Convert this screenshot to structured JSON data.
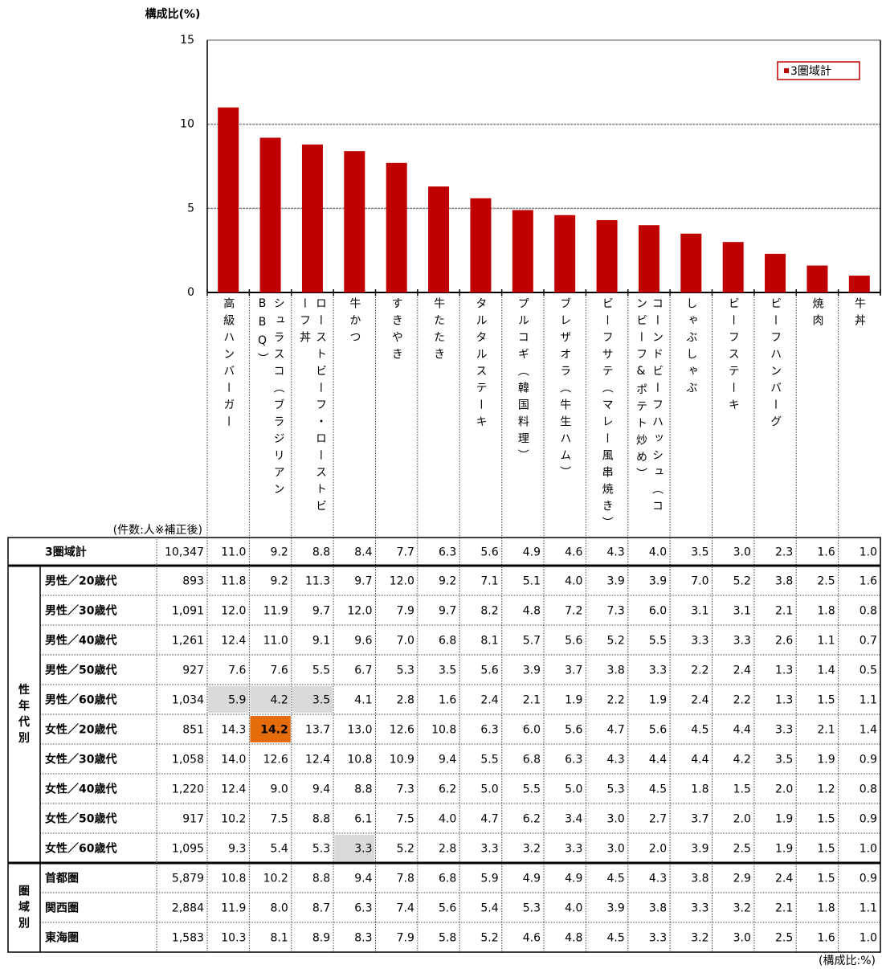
{
  "chart_data": {
    "type": "bar",
    "y_label": "構成比(%)",
    "ylim": [
      0,
      15
    ],
    "yticks": [
      0,
      5,
      10,
      15
    ],
    "grid": true,
    "legend": "upper right",
    "categories": [
      "高級ハンバーガー",
      "シュラスコ（ブラジリアンBBQ）",
      "ローストビーフ・ローストビーフ丼",
      "牛かつ",
      "すきやき",
      "牛たたき",
      "タルタルステーキ",
      "プルコギ（韓国料理）",
      "ブレザオラ（牛生ハム）",
      "ビーフサテ（マレー風串焼き）",
      "コーンドビーフハッシュ（コンビーフ&ポテト炒め）",
      "しゃぶしゃぶ",
      "ビーフステーキ",
      "ビーフハンバーグ",
      "焼肉",
      "牛丼"
    ],
    "series": [
      {
        "name": "3圏域計",
        "color": "#c00000",
        "values": [
          11.0,
          9.2,
          8.8,
          8.4,
          7.7,
          6.3,
          5.6,
          4.9,
          4.6,
          4.3,
          4.0,
          3.5,
          3.0,
          2.3,
          1.6,
          1.0
        ]
      }
    ]
  },
  "table": {
    "count_header": "(件数:人※補正後)",
    "note": "(構成比:%)",
    "total_row": {
      "label": "3圏域計",
      "count": "10,347",
      "values": [
        "11.0",
        "9.2",
        "8.8",
        "8.4",
        "7.7",
        "6.3",
        "5.6",
        "4.9",
        "4.6",
        "4.3",
        "4.0",
        "3.5",
        "3.0",
        "2.3",
        "1.6",
        "1.0"
      ]
    },
    "groups": [
      {
        "label": "性年代別",
        "rows": [
          {
            "label": "男性／20歳代",
            "count": "893",
            "values": [
              "11.8",
              "9.2",
              "11.3",
              "9.7",
              "12.0",
              "9.2",
              "7.1",
              "5.1",
              "4.0",
              "3.9",
              "3.9",
              "7.0",
              "5.2",
              "3.8",
              "2.5",
              "1.6"
            ]
          },
          {
            "label": "男性／30歳代",
            "count": "1,091",
            "values": [
              "12.0",
              "11.9",
              "9.7",
              "12.0",
              "7.9",
              "9.7",
              "8.2",
              "4.8",
              "7.2",
              "7.3",
              "6.0",
              "3.1",
              "3.1",
              "2.1",
              "1.8",
              "0.8"
            ]
          },
          {
            "label": "男性／40歳代",
            "count": "1,261",
            "values": [
              "12.4",
              "11.0",
              "9.1",
              "9.6",
              "7.0",
              "6.8",
              "8.1",
              "5.7",
              "5.6",
              "5.2",
              "5.5",
              "3.3",
              "3.3",
              "2.6",
              "1.1",
              "0.7"
            ]
          },
          {
            "label": "男性／50歳代",
            "count": "927",
            "values": [
              "7.6",
              "7.6",
              "5.5",
              "6.7",
              "5.3",
              "3.5",
              "5.6",
              "3.9",
              "3.7",
              "3.8",
              "3.3",
              "2.2",
              "2.4",
              "1.3",
              "1.4",
              "0.5"
            ]
          },
          {
            "label": "男性／60歳代",
            "count": "1,034",
            "values": [
              "5.9",
              "4.2",
              "3.5",
              "4.1",
              "2.8",
              "1.6",
              "2.4",
              "2.1",
              "1.9",
              "2.2",
              "1.9",
              "2.4",
              "2.2",
              "1.3",
              "1.5",
              "1.1"
            ]
          },
          {
            "label": "女性／20歳代",
            "count": "851",
            "values": [
              "14.3",
              "14.2",
              "13.7",
              "13.0",
              "12.6",
              "10.8",
              "6.3",
              "6.0",
              "5.6",
              "4.7",
              "5.6",
              "4.5",
              "4.4",
              "3.3",
              "2.1",
              "1.4"
            ]
          },
          {
            "label": "女性／30歳代",
            "count": "1,058",
            "values": [
              "14.0",
              "12.6",
              "12.4",
              "10.8",
              "10.9",
              "9.4",
              "5.5",
              "6.8",
              "6.3",
              "4.3",
              "4.4",
              "4.4",
              "4.2",
              "3.5",
              "1.9",
              "0.9"
            ]
          },
          {
            "label": "女性／40歳代",
            "count": "1,220",
            "values": [
              "12.4",
              "9.0",
              "9.4",
              "8.8",
              "7.3",
              "6.2",
              "5.0",
              "5.5",
              "5.0",
              "5.3",
              "4.5",
              "1.8",
              "1.5",
              "2.0",
              "1.2",
              "0.8"
            ]
          },
          {
            "label": "女性／50歳代",
            "count": "917",
            "values": [
              "10.2",
              "7.5",
              "8.8",
              "6.1",
              "7.5",
              "4.0",
              "4.7",
              "6.2",
              "3.4",
              "3.0",
              "2.7",
              "3.7",
              "2.0",
              "1.9",
              "1.5",
              "0.9"
            ]
          },
          {
            "label": "女性／60歳代",
            "count": "1,095",
            "values": [
              "9.3",
              "5.4",
              "5.3",
              "3.3",
              "5.2",
              "2.8",
              "3.3",
              "3.2",
              "3.3",
              "3.0",
              "2.0",
              "3.9",
              "2.5",
              "1.9",
              "1.5",
              "1.0"
            ]
          }
        ]
      },
      {
        "label": "圏域別",
        "rows": [
          {
            "label": "首都圏",
            "count": "5,879",
            "values": [
              "10.8",
              "10.2",
              "8.8",
              "9.4",
              "7.8",
              "6.8",
              "5.9",
              "4.9",
              "4.9",
              "4.5",
              "4.3",
              "3.8",
              "2.9",
              "2.4",
              "1.5",
              "0.9"
            ]
          },
          {
            "label": "関西圏",
            "count": "2,884",
            "values": [
              "11.9",
              "8.0",
              "8.7",
              "6.3",
              "7.4",
              "5.6",
              "5.4",
              "5.3",
              "4.0",
              "3.9",
              "3.8",
              "3.3",
              "3.2",
              "2.1",
              "1.8",
              "1.1"
            ]
          },
          {
            "label": "東海圏",
            "count": "1,583",
            "values": [
              "10.3",
              "8.1",
              "8.9",
              "8.3",
              "7.9",
              "5.8",
              "5.2",
              "4.6",
              "4.8",
              "4.5",
              "3.3",
              "3.2",
              "3.0",
              "2.5",
              "1.6",
              "1.0"
            ]
          }
        ]
      }
    ],
    "highlights": [
      {
        "group": 0,
        "row": 4,
        "cols": [
          0,
          1,
          2
        ],
        "fill": "#d9d9d9"
      },
      {
        "group": 0,
        "row": 9,
        "cols": [
          3
        ],
        "fill": "#d9d9d9"
      },
      {
        "group": 0,
        "row": 5,
        "cols": [
          1
        ],
        "fill": "#e46c0a",
        "text_color": "#ffffff",
        "bold": true
      }
    ]
  }
}
